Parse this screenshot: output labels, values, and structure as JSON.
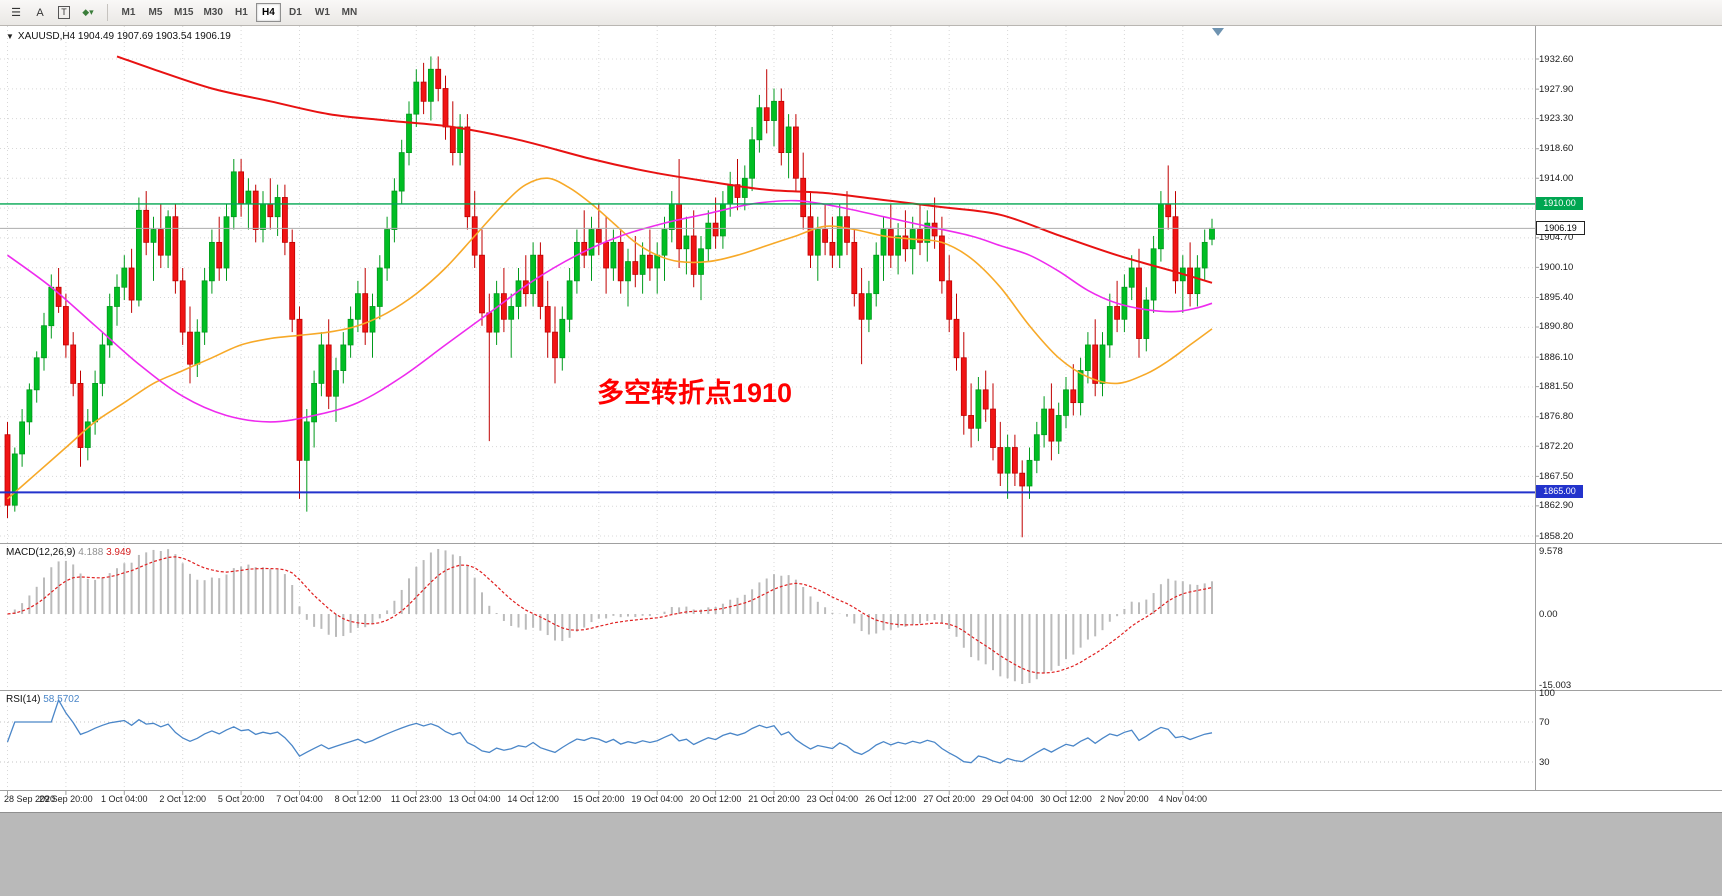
{
  "toolbar": {
    "timeframes": [
      "M1",
      "M5",
      "M15",
      "M30",
      "H1",
      "H4",
      "D1",
      "W1",
      "MN"
    ],
    "active_timeframe": "H4",
    "tool_icons": [
      "chart-bars",
      "font-a",
      "text-box",
      "indicators-dropdown"
    ]
  },
  "chart": {
    "title_text": "XAUUSD,H4  1904.49 1907.69 1903.54 1906.19",
    "symbol": "XAUUSD",
    "timeframe": "H4",
    "ohlc": {
      "open": "1904.49",
      "high": "1907.69",
      "low": "1903.54",
      "close": "1906.19"
    },
    "annotation": "多空转折点1910",
    "levels": {
      "resistance_label": "1910.00",
      "support_label": "1865.00",
      "current_label": "1906.19"
    }
  },
  "macd": {
    "label": "MACD(12,26,9)",
    "value_main": "4.188",
    "value_signal": "3.949",
    "ticks": [
      "9.578",
      "0.00",
      "-15.003"
    ]
  },
  "rsi": {
    "label": "RSI(14)",
    "value": "58.5702",
    "ticks": [
      "100",
      "70",
      "30"
    ]
  },
  "chart_data": {
    "type": "candlestick",
    "symbol": "XAUUSD",
    "timeframe": "H4",
    "y_range": [
      1858.2,
      1932.6
    ],
    "grid_step": 4.65,
    "y_ticks": [
      1932.6,
      1927.9,
      1923.3,
      1918.6,
      1914.0,
      1904.7,
      1900.1,
      1895.4,
      1890.8,
      1886.1,
      1881.5,
      1876.8,
      1872.2,
      1867.5,
      1862.9,
      1858.2
    ],
    "time_ticks": [
      "28 Sep 2020",
      "29 Sep 20:00",
      "1 Oct 04:00",
      "2 Oct 12:00",
      "5 Oct 20:00",
      "7 Oct 04:00",
      "8 Oct 12:00",
      "11 Oct 23:00",
      "13 Oct 04:00",
      "14 Oct 12:00",
      "15 Oct 20:00",
      "19 Oct 04:00",
      "20 Oct 12:00",
      "21 Oct 20:00",
      "23 Oct 04:00",
      "26 Oct 12:00",
      "27 Oct 20:00",
      "29 Oct 04:00",
      "30 Oct 12:00",
      "2 Nov 20:00",
      "4 Nov 04:00"
    ],
    "hlines": [
      {
        "name": "resistance",
        "price": 1910.0,
        "color": "#00A651",
        "width": 1.4
      },
      {
        "name": "bid",
        "price": 1906.19,
        "color": "#ADADAD",
        "width": 1
      },
      {
        "name": "support",
        "price": 1865.0,
        "color": "#2333CC",
        "width": 2
      }
    ],
    "colors": {
      "up": "#00BE23",
      "up_stroke": "#009A1C",
      "down": "#F01414",
      "down_stroke": "#C00000",
      "ma_red": "#E81212",
      "ma_magenta": "#EE2BEE",
      "ma_orange": "#F7A928",
      "macd_hist": "#BBBBBB",
      "macd_signal": "#E02020",
      "rsi_line": "#4A86C8",
      "annotation": "#FF0000",
      "grid": "#D8D8D8",
      "frame": "#A0A0A0"
    },
    "candles": [
      [
        1874,
        1876,
        1861,
        1863
      ],
      [
        1863,
        1872,
        1862,
        1871
      ],
      [
        1871,
        1878,
        1869,
        1876
      ],
      [
        1876,
        1882,
        1874,
        1881
      ],
      [
        1881,
        1887,
        1879,
        1886
      ],
      [
        1886,
        1893,
        1884,
        1891
      ],
      [
        1891,
        1899,
        1889,
        1897
      ],
      [
        1897,
        1900,
        1893,
        1894
      ],
      [
        1894,
        1896,
        1886,
        1888
      ],
      [
        1888,
        1890,
        1880,
        1882
      ],
      [
        1882,
        1884,
        1869,
        1872
      ],
      [
        1872,
        1878,
        1870,
        1876
      ],
      [
        1876,
        1884,
        1874,
        1882
      ],
      [
        1882,
        1890,
        1880,
        1888
      ],
      [
        1888,
        1896,
        1886,
        1894
      ],
      [
        1894,
        1899,
        1891,
        1897
      ],
      [
        1897,
        1902,
        1895,
        1900
      ],
      [
        1900,
        1903,
        1893,
        1895
      ],
      [
        1895,
        1911,
        1894,
        1909
      ],
      [
        1909,
        1912,
        1902,
        1904
      ],
      [
        1904,
        1908,
        1898,
        1906
      ],
      [
        1906,
        1910,
        1900,
        1902
      ],
      [
        1902,
        1909,
        1900,
        1908
      ],
      [
        1908,
        1910,
        1896,
        1898
      ],
      [
        1898,
        1900,
        1888,
        1890
      ],
      [
        1890,
        1894,
        1882,
        1885
      ],
      [
        1885,
        1892,
        1883,
        1890
      ],
      [
        1890,
        1900,
        1888,
        1898
      ],
      [
        1898,
        1906,
        1896,
        1904
      ],
      [
        1904,
        1908,
        1898,
        1900
      ],
      [
        1900,
        1910,
        1898,
        1908
      ],
      [
        1908,
        1917,
        1906,
        1915
      ],
      [
        1915,
        1917,
        1908,
        1910
      ],
      [
        1910,
        1914,
        1906,
        1912
      ],
      [
        1912,
        1913,
        1904,
        1906
      ],
      [
        1906,
        1912,
        1904,
        1910
      ],
      [
        1910,
        1914,
        1906,
        1908
      ],
      [
        1908,
        1913,
        1905,
        1911
      ],
      [
        1911,
        1913,
        1902,
        1904
      ],
      [
        1904,
        1906,
        1890,
        1892
      ],
      [
        1892,
        1894,
        1864,
        1870
      ],
      [
        1870,
        1878,
        1862,
        1876
      ],
      [
        1876,
        1884,
        1872,
        1882
      ],
      [
        1882,
        1890,
        1880,
        1888
      ],
      [
        1888,
        1892,
        1878,
        1880
      ],
      [
        1880,
        1886,
        1876,
        1884
      ],
      [
        1884,
        1890,
        1882,
        1888
      ],
      [
        1888,
        1894,
        1886,
        1892
      ],
      [
        1892,
        1898,
        1890,
        1896
      ],
      [
        1896,
        1900,
        1888,
        1890
      ],
      [
        1890,
        1896,
        1886,
        1894
      ],
      [
        1894,
        1902,
        1892,
        1900
      ],
      [
        1900,
        1908,
        1898,
        1906
      ],
      [
        1906,
        1914,
        1904,
        1912
      ],
      [
        1912,
        1920,
        1910,
        1918
      ],
      [
        1918,
        1926,
        1916,
        1924
      ],
      [
        1924,
        1931,
        1922,
        1929
      ],
      [
        1929,
        1932,
        1924,
        1926
      ],
      [
        1926,
        1933,
        1923,
        1931
      ],
      [
        1931,
        1933,
        1926,
        1928
      ],
      [
        1928,
        1930,
        1920,
        1922
      ],
      [
        1922,
        1926,
        1916,
        1918
      ],
      [
        1918,
        1924,
        1916,
        1922
      ],
      [
        1922,
        1924,
        1906,
        1908
      ],
      [
        1908,
        1912,
        1900,
        1902
      ],
      [
        1902,
        1906,
        1891,
        1893
      ],
      [
        1893,
        1896,
        1873,
        1890
      ],
      [
        1890,
        1898,
        1888,
        1896
      ],
      [
        1896,
        1900,
        1890,
        1892
      ],
      [
        1892,
        1896,
        1886,
        1894
      ],
      [
        1894,
        1900,
        1892,
        1898
      ],
      [
        1898,
        1902,
        1894,
        1896
      ],
      [
        1896,
        1904,
        1894,
        1902
      ],
      [
        1902,
        1904,
        1892,
        1894
      ],
      [
        1894,
        1898,
        1886,
        1890
      ],
      [
        1890,
        1894,
        1882,
        1886
      ],
      [
        1886,
        1894,
        1884,
        1892
      ],
      [
        1892,
        1900,
        1890,
        1898
      ],
      [
        1898,
        1906,
        1896,
        1904
      ],
      [
        1904,
        1909,
        1900,
        1902
      ],
      [
        1902,
        1908,
        1898,
        1906
      ],
      [
        1906,
        1910,
        1902,
        1904
      ],
      [
        1904,
        1908,
        1896,
        1900
      ],
      [
        1900,
        1906,
        1898,
        1904
      ],
      [
        1904,
        1906,
        1896,
        1898
      ],
      [
        1898,
        1903,
        1894,
        1901
      ],
      [
        1901,
        1905,
        1897,
        1899
      ],
      [
        1899,
        1904,
        1896,
        1902
      ],
      [
        1902,
        1906,
        1898,
        1900
      ],
      [
        1900,
        1904,
        1896,
        1902
      ],
      [
        1902,
        1908,
        1898,
        1906
      ],
      [
        1906,
        1912,
        1904,
        1910
      ],
      [
        1910,
        1917,
        1900,
        1903
      ],
      [
        1903,
        1908,
        1899,
        1905
      ],
      [
        1905,
        1909,
        1897,
        1899
      ],
      [
        1899,
        1905,
        1895,
        1903
      ],
      [
        1903,
        1909,
        1901,
        1907
      ],
      [
        1907,
        1911,
        1903,
        1905
      ],
      [
        1905,
        1912,
        1903,
        1910
      ],
      [
        1910,
        1915,
        1908,
        1913
      ],
      [
        1913,
        1917,
        1909,
        1911
      ],
      [
        1911,
        1916,
        1909,
        1914
      ],
      [
        1914,
        1922,
        1912,
        1920
      ],
      [
        1920,
        1927,
        1918,
        1925
      ],
      [
        1925,
        1931,
        1921,
        1923
      ],
      [
        1923,
        1928,
        1919,
        1926
      ],
      [
        1926,
        1928,
        1916,
        1918
      ],
      [
        1918,
        1924,
        1914,
        1922
      ],
      [
        1922,
        1924,
        1912,
        1914
      ],
      [
        1914,
        1918,
        1906,
        1908
      ],
      [
        1908,
        1912,
        1900,
        1902
      ],
      [
        1902,
        1908,
        1898,
        1906
      ],
      [
        1906,
        1910,
        1902,
        1904
      ],
      [
        1904,
        1908,
        1900,
        1902
      ],
      [
        1902,
        1910,
        1900,
        1908
      ],
      [
        1908,
        1912,
        1902,
        1904
      ],
      [
        1904,
        1906,
        1894,
        1896
      ],
      [
        1896,
        1900,
        1885,
        1892
      ],
      [
        1892,
        1898,
        1890,
        1896
      ],
      [
        1896,
        1904,
        1894,
        1902
      ],
      [
        1902,
        1908,
        1898,
        1906
      ],
      [
        1906,
        1910,
        1900,
        1902
      ],
      [
        1902,
        1907,
        1899,
        1905
      ],
      [
        1905,
        1909,
        1901,
        1903
      ],
      [
        1903,
        1908,
        1899,
        1906
      ],
      [
        1906,
        1910,
        1902,
        1904
      ],
      [
        1904,
        1909,
        1901,
        1907
      ],
      [
        1907,
        1911,
        1903,
        1905
      ],
      [
        1905,
        1908,
        1896,
        1898
      ],
      [
        1898,
        1902,
        1890,
        1892
      ],
      [
        1892,
        1896,
        1884,
        1886
      ],
      [
        1886,
        1890,
        1874,
        1877
      ],
      [
        1877,
        1882,
        1872,
        1875
      ],
      [
        1875,
        1883,
        1873,
        1881
      ],
      [
        1881,
        1884,
        1876,
        1878
      ],
      [
        1878,
        1882,
        1870,
        1872
      ],
      [
        1872,
        1876,
        1866,
        1868
      ],
      [
        1868,
        1874,
        1864,
        1872
      ],
      [
        1872,
        1874,
        1866,
        1868
      ],
      [
        1868,
        1870,
        1858,
        1866
      ],
      [
        1866,
        1872,
        1864,
        1870
      ],
      [
        1870,
        1876,
        1868,
        1874
      ],
      [
        1874,
        1880,
        1872,
        1878
      ],
      [
        1878,
        1882,
        1870,
        1873
      ],
      [
        1873,
        1879,
        1871,
        1877
      ],
      [
        1877,
        1883,
        1875,
        1881
      ],
      [
        1881,
        1885,
        1877,
        1879
      ],
      [
        1879,
        1886,
        1877,
        1884
      ],
      [
        1884,
        1890,
        1882,
        1888
      ],
      [
        1888,
        1892,
        1880,
        1882
      ],
      [
        1882,
        1890,
        1880,
        1888
      ],
      [
        1888,
        1896,
        1886,
        1894
      ],
      [
        1894,
        1898,
        1890,
        1892
      ],
      [
        1892,
        1899,
        1890,
        1897
      ],
      [
        1897,
        1902,
        1895,
        1900
      ],
      [
        1900,
        1903,
        1886,
        1889
      ],
      [
        1889,
        1897,
        1887,
        1895
      ],
      [
        1895,
        1905,
        1893,
        1903
      ],
      [
        1903,
        1912,
        1901,
        1910
      ],
      [
        1910,
        1916,
        1906,
        1908
      ],
      [
        1908,
        1912,
        1896,
        1898
      ],
      [
        1898,
        1902,
        1893,
        1900
      ],
      [
        1900,
        1904,
        1894,
        1896
      ],
      [
        1896,
        1902,
        1894,
        1900
      ],
      [
        1900,
        1906,
        1898,
        1904
      ],
      [
        1904.49,
        1907.69,
        1903.54,
        1906.19
      ]
    ],
    "ma_red": [
      [
        15,
        1933
      ],
      [
        20,
        1931
      ],
      [
        28,
        1928
      ],
      [
        36,
        1926
      ],
      [
        44,
        1924
      ],
      [
        52,
        1923
      ],
      [
        61,
        1922
      ],
      [
        70,
        1920
      ],
      [
        80,
        1917
      ],
      [
        88,
        1915
      ],
      [
        96,
        1913.5
      ],
      [
        104,
        1912.2
      ],
      [
        112,
        1911.7
      ],
      [
        120,
        1910.6
      ],
      [
        128,
        1909.5
      ],
      [
        136,
        1908.3
      ],
      [
        144,
        1905.1
      ],
      [
        152,
        1902
      ],
      [
        160,
        1899.4
      ],
      [
        165,
        1897.7
      ]
    ],
    "ma_magenta": [
      [
        0,
        1902
      ],
      [
        6,
        1897
      ],
      [
        12,
        1891
      ],
      [
        18,
        1885
      ],
      [
        24,
        1880
      ],
      [
        30,
        1877
      ],
      [
        36,
        1876
      ],
      [
        42,
        1877
      ],
      [
        48,
        1879
      ],
      [
        54,
        1883
      ],
      [
        60,
        1888
      ],
      [
        66,
        1893
      ],
      [
        72,
        1898
      ],
      [
        78,
        1902
      ],
      [
        84,
        1905
      ],
      [
        90,
        1907
      ],
      [
        96,
        1908.5
      ],
      [
        102,
        1910
      ],
      [
        108,
        1910.5
      ],
      [
        114,
        1909.5
      ],
      [
        120,
        1908
      ],
      [
        126,
        1906.5
      ],
      [
        132,
        1905
      ],
      [
        136,
        1903.5
      ],
      [
        140,
        1902
      ],
      [
        144,
        1899.5
      ],
      [
        148,
        1896.5
      ],
      [
        152,
        1894.5
      ],
      [
        156,
        1893.5
      ],
      [
        160,
        1893.2
      ],
      [
        163,
        1893.8
      ],
      [
        165,
        1894.5
      ]
    ],
    "ma_orange": [
      [
        0,
        1864
      ],
      [
        4,
        1868
      ],
      [
        8,
        1872
      ],
      [
        12,
        1876
      ],
      [
        16,
        1879
      ],
      [
        20,
        1882
      ],
      [
        24,
        1884
      ],
      [
        28,
        1886
      ],
      [
        32,
        1888
      ],
      [
        36,
        1889
      ],
      [
        40,
        1889.5
      ],
      [
        44,
        1890
      ],
      [
        48,
        1891
      ],
      [
        52,
        1893
      ],
      [
        56,
        1896
      ],
      [
        60,
        1900
      ],
      [
        64,
        1905
      ],
      [
        68,
        1910
      ],
      [
        71,
        1913
      ],
      [
        74,
        1914
      ],
      [
        77,
        1912.5
      ],
      [
        80,
        1910
      ],
      [
        83,
        1907
      ],
      [
        86,
        1904
      ],
      [
        89,
        1902
      ],
      [
        92,
        1901
      ],
      [
        96,
        1901
      ],
      [
        100,
        1902
      ],
      [
        104,
        1903.5
      ],
      [
        108,
        1905
      ],
      [
        112,
        1906.5
      ],
      [
        116,
        1906
      ],
      [
        120,
        1905
      ],
      [
        124,
        1904.5
      ],
      [
        128,
        1904
      ],
      [
        132,
        1901.5
      ],
      [
        136,
        1897
      ],
      [
        140,
        1891
      ],
      [
        144,
        1886
      ],
      [
        148,
        1883
      ],
      [
        152,
        1882
      ],
      [
        156,
        1883.5
      ],
      [
        159,
        1885.5
      ],
      [
        162,
        1888
      ],
      [
        165,
        1890.5
      ]
    ]
  }
}
